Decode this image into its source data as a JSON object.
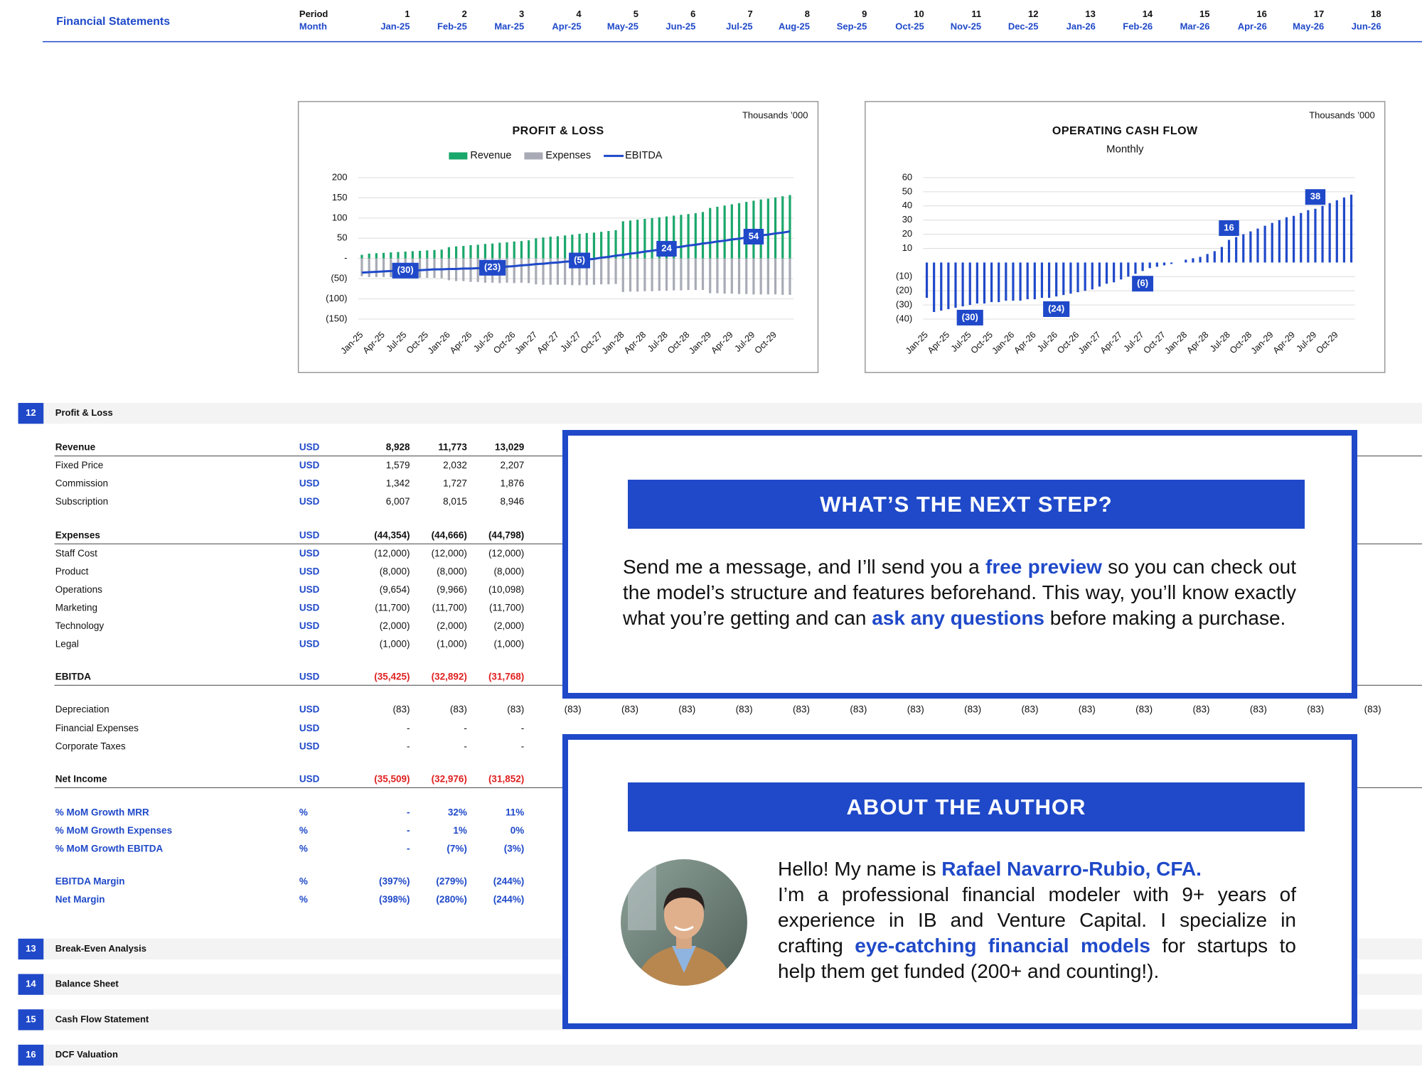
{
  "sheet": {
    "title": "Financial Statements",
    "period_label": "Period",
    "month_label": "Month",
    "periods": [
      1,
      2,
      3,
      4,
      5,
      6,
      7,
      8,
      9,
      10,
      11,
      12,
      13,
      14,
      15,
      16,
      17,
      18
    ],
    "months": [
      "Jan-25",
      "Feb-25",
      "Mar-25",
      "Apr-25",
      "May-25",
      "Jun-25",
      "Jul-25",
      "Aug-25",
      "Sep-25",
      "Oct-25",
      "Nov-25",
      "Dec-25",
      "Jan-26",
      "Feb-26",
      "Mar-26",
      "Apr-26",
      "May-26",
      "Jun-26"
    ],
    "sections": [
      {
        "number": "12",
        "title": "Profit & Loss"
      },
      {
        "number": "13",
        "title": "Break-Even Analysis"
      },
      {
        "number": "14",
        "title": "Balance Sheet"
      },
      {
        "number": "15",
        "title": "Cash Flow Statement"
      },
      {
        "number": "16",
        "title": "DCF Valuation"
      }
    ],
    "rows": [
      {
        "label": "Revenue",
        "unit": "USD",
        "kind": "total",
        "values": [
          "8,928",
          "11,773",
          "13,029"
        ]
      },
      {
        "label": "Fixed Price",
        "unit": "USD",
        "kind": "item",
        "values": [
          "1,579",
          "2,032",
          "2,207"
        ]
      },
      {
        "label": "Commission",
        "unit": "USD",
        "kind": "item",
        "values": [
          "1,342",
          "1,727",
          "1,876"
        ]
      },
      {
        "label": "Subscription",
        "unit": "USD",
        "kind": "item",
        "values": [
          "6,007",
          "8,015",
          "8,946"
        ]
      },
      {
        "label": "Expenses",
        "unit": "USD",
        "kind": "total",
        "values": [
          "(44,354)",
          "(44,666)",
          "(44,798)"
        ]
      },
      {
        "label": "Staff Cost",
        "unit": "USD",
        "kind": "item",
        "values": [
          "(12,000)",
          "(12,000)",
          "(12,000)"
        ]
      },
      {
        "label": "Product",
        "unit": "USD",
        "kind": "item",
        "values": [
          "(8,000)",
          "(8,000)",
          "(8,000)"
        ]
      },
      {
        "label": "Operations",
        "unit": "USD",
        "kind": "item",
        "values": [
          "(9,654)",
          "(9,966)",
          "(10,098)"
        ]
      },
      {
        "label": "Marketing",
        "unit": "USD",
        "kind": "item",
        "values": [
          "(11,700)",
          "(11,700)",
          "(11,700)"
        ]
      },
      {
        "label": "Technology",
        "unit": "USD",
        "kind": "item",
        "values": [
          "(2,000)",
          "(2,000)",
          "(2,000)"
        ]
      },
      {
        "label": "Legal",
        "unit": "USD",
        "kind": "item",
        "values": [
          "(1,000)",
          "(1,000)",
          "(1,000)"
        ]
      },
      {
        "label": "EBITDA",
        "unit": "USD",
        "kind": "total",
        "red": true,
        "values": [
          "(35,425)",
          "(32,892)",
          "(31,768)"
        ]
      },
      {
        "label": "Depreciation",
        "unit": "USD",
        "kind": "item",
        "values": [
          "(83)",
          "(83)",
          "(83)",
          "(83)",
          "(83)",
          "(83)",
          "(83)",
          "(83)",
          "(83)",
          "(83)",
          "(83)",
          "(83)",
          "(83)",
          "(83)",
          "(83)",
          "(83)",
          "(83)",
          "(83)"
        ]
      },
      {
        "label": "Financial Expenses",
        "unit": "USD",
        "kind": "item",
        "values": [
          "-",
          "-",
          "-"
        ]
      },
      {
        "label": "Corporate Taxes",
        "unit": "USD",
        "kind": "item",
        "values": [
          "-",
          "-",
          "-"
        ]
      },
      {
        "label": "Net Income",
        "unit": "USD",
        "kind": "total",
        "red": true,
        "values": [
          "(35,509)",
          "(32,976)",
          "(31,852)"
        ]
      },
      {
        "label": "% MoM Growth MRR",
        "unit": "%",
        "kind": "metric",
        "values": [
          "-",
          "32%",
          "11%"
        ]
      },
      {
        "label": "% MoM Growth Expenses",
        "unit": "%",
        "kind": "metric",
        "values": [
          "-",
          "1%",
          "0%"
        ]
      },
      {
        "label": "% MoM Growth EBITDA",
        "unit": "%",
        "kind": "metric",
        "values": [
          "-",
          "(7%)",
          "(3%)"
        ]
      },
      {
        "label": "EBITDA Margin",
        "unit": "%",
        "kind": "metric",
        "values": [
          "(397%)",
          "(279%)",
          "(244%)"
        ]
      },
      {
        "label": "Net Margin",
        "unit": "%",
        "kind": "metric",
        "values": [
          "(398%)",
          "(280%)",
          "(244%)"
        ]
      }
    ]
  },
  "chart_data": [
    {
      "type": "combo",
      "title": "PROFIT & LOSS",
      "unit_note": "Thousands ’000",
      "grid": true,
      "categories": [
        "Jan-25",
        null,
        null,
        "Apr-25",
        null,
        null,
        "Jul-25",
        null,
        null,
        "Oct-25",
        null,
        null,
        "Jan-26",
        null,
        null,
        "Apr-26",
        null,
        null,
        "Jul-26",
        null,
        null,
        "Oct-26",
        null,
        null,
        "Jan-27",
        null,
        null,
        "Apr-27",
        null,
        null,
        "Jul-27",
        null,
        null,
        "Oct-27",
        null,
        null,
        "Jan-28",
        null,
        null,
        "Apr-28",
        null,
        null,
        "Jul-28",
        null,
        null,
        "Oct-28",
        null,
        null,
        "Jan-29",
        null,
        null,
        "Apr-29",
        null,
        null,
        "Jul-29",
        null,
        null,
        "Oct-29",
        null,
        null
      ],
      "ylim": [
        -150,
        200
      ],
      "yticks": [
        200,
        150,
        100,
        50,
        {
          "value": 0,
          "label": "-"
        },
        {
          "value": -50,
          "label": "(50)"
        },
        {
          "value": -100,
          "label": "(100)"
        },
        {
          "value": -150,
          "label": "(150)"
        }
      ],
      "series": [
        {
          "name": "Revenue",
          "kind": "bar",
          "color": "#1aa76b",
          "values": [
            9,
            12,
            13,
            14,
            15,
            16,
            17,
            18,
            19,
            20,
            21,
            22,
            28,
            30,
            31,
            33,
            34,
            36,
            37,
            39,
            40,
            42,
            43,
            45,
            50,
            52,
            54,
            55,
            57,
            59,
            61,
            63,
            64,
            66,
            68,
            70,
            92,
            94,
            96,
            98,
            100,
            102,
            104,
            106,
            108,
            110,
            112,
            115,
            125,
            128,
            131,
            134,
            137,
            140,
            143,
            146,
            148,
            151,
            154,
            157
          ]
        },
        {
          "name": "Expenses",
          "kind": "bar",
          "color": "#a8abb5",
          "values": [
            -44,
            -46,
            -46,
            -46,
            -46,
            -47,
            -47,
            -47,
            -48,
            -48,
            -48,
            -49,
            -54,
            -56,
            -56,
            -58,
            -58,
            -60,
            -60,
            -61,
            -60,
            -61,
            -60,
            -61,
            -64,
            -65,
            -65,
            -65,
            -65,
            -66,
            -66,
            -66,
            -65,
            -64,
            -64,
            -63,
            -83,
            -82,
            -82,
            -81,
            -81,
            -80,
            -80,
            -79,
            -79,
            -78,
            -78,
            -78,
            -86,
            -86,
            -87,
            -87,
            -88,
            -88,
            -89,
            -89,
            -89,
            -89,
            -90,
            -90
          ]
        },
        {
          "name": "EBITDA",
          "kind": "line",
          "color": "#1f49c9",
          "values": [
            -35,
            -34,
            -33,
            -32,
            -31,
            -31,
            -30,
            -29,
            -29,
            -28,
            -27,
            -27,
            -26,
            -26,
            -25,
            -25,
            -24,
            -24,
            -23,
            -22,
            -20,
            -19,
            -17,
            -16,
            -14,
            -13,
            -11,
            -10,
            -8,
            -7,
            -5,
            -3,
            -1,
            2,
            4,
            7,
            9,
            12,
            14,
            17,
            19,
            22,
            24,
            27,
            29,
            32,
            34,
            37,
            39,
            42,
            44,
            47,
            49,
            52,
            54,
            57,
            59,
            62,
            64,
            67
          ],
          "value_labels": [
            null,
            null,
            null,
            null,
            null,
            null,
            "(30)",
            null,
            null,
            null,
            null,
            null,
            null,
            null,
            null,
            null,
            null,
            null,
            "(23)",
            null,
            null,
            null,
            null,
            null,
            null,
            null,
            null,
            null,
            null,
            null,
            "(5)",
            null,
            null,
            null,
            null,
            null,
            null,
            null,
            null,
            null,
            null,
            null,
            "24",
            null,
            null,
            null,
            null,
            null,
            null,
            null,
            null,
            null,
            null,
            null,
            "54",
            null,
            null,
            null,
            null,
            null
          ]
        }
      ]
    },
    {
      "type": "bar",
      "title": "OPERATING CASH FLOW",
      "subtitle": "Monthly",
      "unit_note": "Thousands ’000",
      "grid": true,
      "color": "#1f49c9",
      "categories": [
        "Jan-25",
        null,
        null,
        "Apr-25",
        null,
        null,
        "Jul-25",
        null,
        null,
        "Oct-25",
        null,
        null,
        "Jan-26",
        null,
        null,
        "Apr-26",
        null,
        null,
        "Jul-26",
        null,
        null,
        "Oct-26",
        null,
        null,
        "Jan-27",
        null,
        null,
        "Apr-27",
        null,
        null,
        "Jul-27",
        null,
        null,
        "Oct-27",
        null,
        null,
        "Jan-28",
        null,
        null,
        "Apr-28",
        null,
        null,
        "Jul-28",
        null,
        null,
        "Oct-28",
        null,
        null,
        "Jan-29",
        null,
        null,
        "Apr-29",
        null,
        null,
        "Jul-29",
        null,
        null,
        "Oct-29",
        null,
        null
      ],
      "ylim": [
        -40,
        60
      ],
      "yticks": [
        60,
        50,
        40,
        30,
        20,
        10,
        {
          "value": -10,
          "label": "(10)"
        },
        {
          "value": -20,
          "label": "(20)"
        },
        {
          "value": -30,
          "label": "(30)"
        },
        {
          "value": -40,
          "label": "(40)"
        }
      ],
      "values": [
        -25,
        -35,
        -34,
        -33,
        -32,
        -31,
        -30,
        -29,
        -29,
        -28,
        -28,
        -27,
        -27,
        -27,
        -26,
        -26,
        -25,
        -25,
        -24,
        -23,
        -22,
        -21,
        -20,
        -19,
        -17,
        -15,
        -14,
        -12,
        -10,
        -8,
        -6,
        -4,
        -3,
        -2,
        -1,
        0,
        2,
        3,
        4,
        6,
        8,
        11,
        16,
        18,
        20,
        22,
        24,
        26,
        28,
        30,
        32,
        33,
        35,
        37,
        38,
        40,
        42,
        44,
        46,
        48
      ],
      "value_labels": [
        null,
        null,
        null,
        null,
        null,
        null,
        "(30)",
        null,
        null,
        null,
        null,
        null,
        null,
        null,
        null,
        null,
        null,
        null,
        "(24)",
        null,
        null,
        null,
        null,
        null,
        null,
        null,
        null,
        null,
        null,
        null,
        "(6)",
        null,
        null,
        null,
        null,
        null,
        null,
        null,
        null,
        null,
        null,
        null,
        "16",
        null,
        null,
        null,
        null,
        null,
        null,
        null,
        null,
        null,
        null,
        null,
        "38",
        null,
        null,
        null,
        null,
        null
      ]
    }
  ],
  "next_step": {
    "title": "WHAT’S THE NEXT STEP?",
    "paragraph": [
      {
        "text": "Send me a message, and I’ll send you a ",
        "em": false
      },
      {
        "text": "free preview",
        "em": true
      },
      {
        "text": " so you can check out the model’s structure and features beforehand. This way, you’ll know exactly what you’re getting and can ",
        "em": false
      },
      {
        "text": "ask any questions",
        "em": true
      },
      {
        "text": " before making a purchase.",
        "em": false
      }
    ]
  },
  "author": {
    "title": "ABOUT THE AUTHOR",
    "paragraphs": [
      [
        {
          "text": "Hello! My name is ",
          "em": false
        },
        {
          "text": "Rafael Navarro-Rubio, CFA.",
          "em": true
        }
      ],
      [
        {
          "text": "I’m a professional financial modeler with 9+ years of experience in IB and Venture Capital. I specialize in crafting ",
          "em": false
        },
        {
          "text": "eye-catching financial models",
          "em": true
        },
        {
          "text": " for startups to help them get funded (200+ and counting!).",
          "em": false
        }
      ]
    ]
  }
}
